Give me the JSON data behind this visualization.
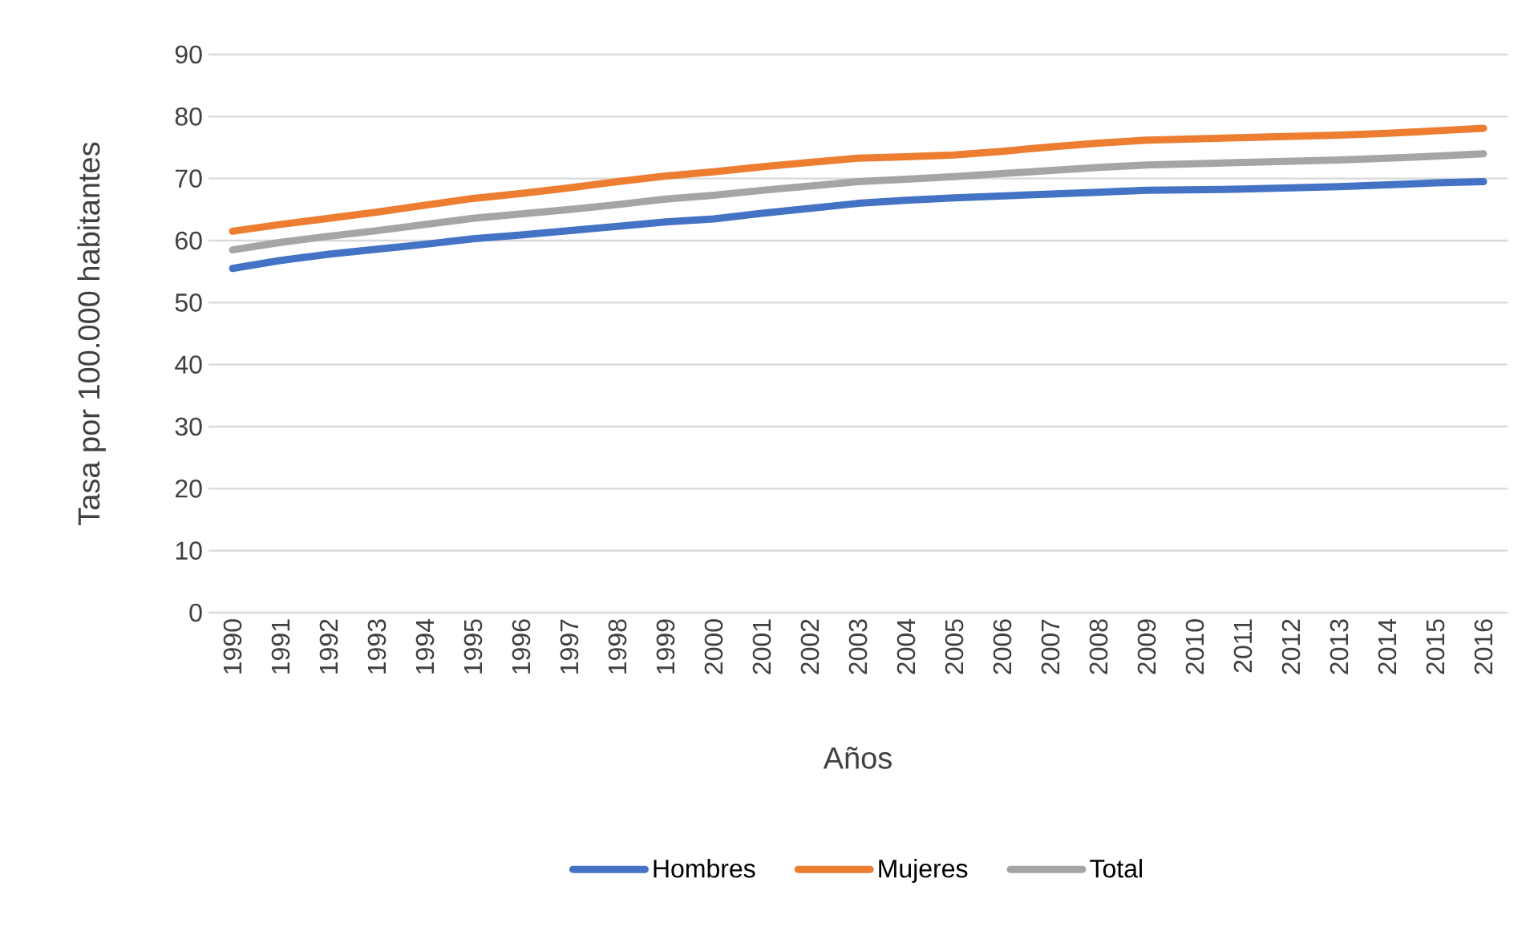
{
  "chart_data": {
    "type": "line",
    "xlabel": "Años",
    "ylabel": "Tasa por 100.000 habitantes",
    "categories": [
      "1990",
      "1991",
      "1992",
      "1993",
      "1994",
      "1995",
      "1996",
      "1997",
      "1998",
      "1999",
      "2000",
      "2001",
      "2002",
      "2003",
      "2004",
      "2005",
      "2006",
      "2007",
      "2008",
      "2009",
      "2010",
      "2011",
      "2012",
      "2013",
      "2014",
      "2015",
      "2016"
    ],
    "series": [
      {
        "name": "Hombres",
        "color": "#4472c4",
        "values": [
          55.5,
          56.8,
          57.8,
          58.6,
          59.4,
          60.3,
          60.9,
          61.6,
          62.3,
          63.0,
          63.5,
          64.4,
          65.2,
          66.0,
          66.5,
          66.9,
          67.2,
          67.5,
          67.8,
          68.1,
          68.2,
          68.3,
          68.5,
          68.7,
          69.0,
          69.3,
          69.5
        ]
      },
      {
        "name": "Mujeres",
        "color": "#ed7d31",
        "values": [
          61.5,
          62.6,
          63.6,
          64.6,
          65.7,
          66.8,
          67.6,
          68.5,
          69.5,
          70.4,
          71.1,
          71.9,
          72.6,
          73.3,
          73.5,
          73.8,
          74.4,
          75.1,
          75.7,
          76.2,
          76.4,
          76.6,
          76.8,
          77.0,
          77.3,
          77.7,
          78.1
        ]
      },
      {
        "name": "Total",
        "color": "#a5a5a5",
        "values": [
          58.5,
          59.7,
          60.7,
          61.6,
          62.6,
          63.6,
          64.3,
          65.0,
          65.8,
          66.7,
          67.3,
          68.1,
          68.8,
          69.5,
          69.9,
          70.3,
          70.8,
          71.3,
          71.8,
          72.2,
          72.4,
          72.6,
          72.8,
          73.0,
          73.3,
          73.6,
          74.0
        ]
      }
    ],
    "ylim": [
      0,
      90
    ],
    "yticks": [
      0,
      10,
      20,
      30,
      40,
      50,
      60,
      70,
      80,
      90
    ],
    "grid": "y",
    "legend": "bottom"
  }
}
